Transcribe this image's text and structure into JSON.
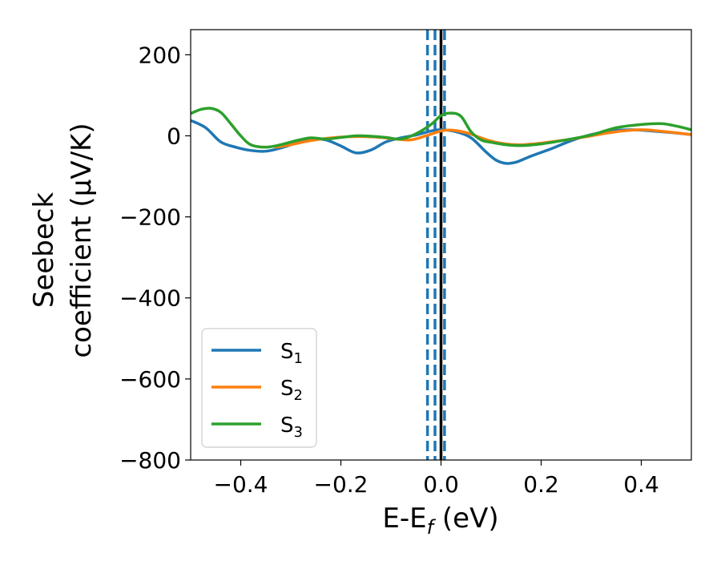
{
  "chart_data": {
    "type": "line",
    "xlabel": {
      "main": "E-E",
      "sub": "f",
      "unit": " (eV)"
    },
    "ylabel": {
      "line1": "Seebeck",
      "line2": "coefficient  (μV/K)"
    },
    "xlim": [
      -0.5,
      0.5
    ],
    "ylim": [
      -800,
      262
    ],
    "xticks": [
      -0.4,
      -0.2,
      0.0,
      0.2,
      0.4
    ],
    "xtick_labels": [
      "−0.4",
      "−0.2",
      "0.0",
      "0.2",
      "0.4"
    ],
    "yticks": [
      -800,
      -600,
      -400,
      -200,
      0,
      200
    ],
    "ytick_labels": [
      "−800",
      "−600",
      "−400",
      "−200",
      "0",
      "200"
    ],
    "grid": false,
    "legend_position": "lower-left",
    "vlines": [
      {
        "x": -0.027,
        "style": "dashed",
        "color": "#1f77b4"
      },
      {
        "x": -0.012,
        "style": "dashed",
        "color": "#1f77b4"
      },
      {
        "x": 0.007,
        "style": "dashed",
        "color": "#1f77b4"
      },
      {
        "x": 0.0,
        "style": "solid",
        "color": "#000000"
      }
    ],
    "series": [
      {
        "name": "S",
        "sub": "1",
        "color": "#1f77b4",
        "x": [
          -0.5,
          -0.47,
          -0.44,
          -0.41,
          -0.38,
          -0.35,
          -0.32,
          -0.29,
          -0.26,
          -0.23,
          -0.2,
          -0.17,
          -0.14,
          -0.11,
          -0.08,
          -0.05,
          -0.02,
          0.0,
          0.03,
          0.06,
          0.09,
          0.11,
          0.13,
          0.15,
          0.18,
          0.22,
          0.26,
          0.3,
          0.34,
          0.38,
          0.42,
          0.46,
          0.5
        ],
        "y": [
          38,
          20,
          -15,
          -28,
          -36,
          -38,
          -30,
          -18,
          -8,
          -10,
          -25,
          -42,
          -35,
          -15,
          -5,
          2,
          12,
          15,
          10,
          -5,
          -40,
          -60,
          -68,
          -65,
          -50,
          -32,
          -12,
          3,
          12,
          15,
          12,
          8,
          3
        ]
      },
      {
        "name": "S",
        "sub": "2",
        "color": "#ff7f0e",
        "x": [
          -0.33,
          -0.3,
          -0.27,
          -0.24,
          -0.21,
          -0.18,
          -0.15,
          -0.12,
          -0.09,
          -0.06,
          -0.03,
          0.0,
          0.02,
          0.05,
          0.08,
          0.1,
          0.13,
          0.16,
          0.2,
          0.25,
          0.3,
          0.35,
          0.4,
          0.45,
          0.5
        ],
        "y": [
          -28,
          -22,
          -14,
          -8,
          -4,
          -2,
          -2,
          -4,
          -8,
          -10,
          0,
          12,
          14,
          8,
          -5,
          -13,
          -20,
          -22,
          -18,
          -10,
          0,
          10,
          15,
          10,
          3
        ]
      },
      {
        "name": "S",
        "sub": "3",
        "color": "#2ca02c",
        "x": [
          -0.5,
          -0.48,
          -0.46,
          -0.44,
          -0.42,
          -0.4,
          -0.38,
          -0.35,
          -0.32,
          -0.29,
          -0.26,
          -0.23,
          -0.2,
          -0.17,
          -0.14,
          -0.11,
          -0.08,
          -0.05,
          -0.02,
          0.0,
          0.02,
          0.04,
          0.06,
          0.08,
          0.1,
          0.13,
          0.16,
          0.2,
          0.25,
          0.3,
          0.35,
          0.4,
          0.44,
          0.47,
          0.5
        ],
        "y": [
          55,
          65,
          68,
          58,
          30,
          0,
          -22,
          -28,
          -22,
          -12,
          -5,
          -8,
          -4,
          0,
          -1,
          -4,
          -8,
          5,
          28,
          50,
          56,
          48,
          10,
          -10,
          -16,
          -22,
          -24,
          -20,
          -10,
          2,
          20,
          28,
          30,
          24,
          15
        ]
      }
    ]
  }
}
